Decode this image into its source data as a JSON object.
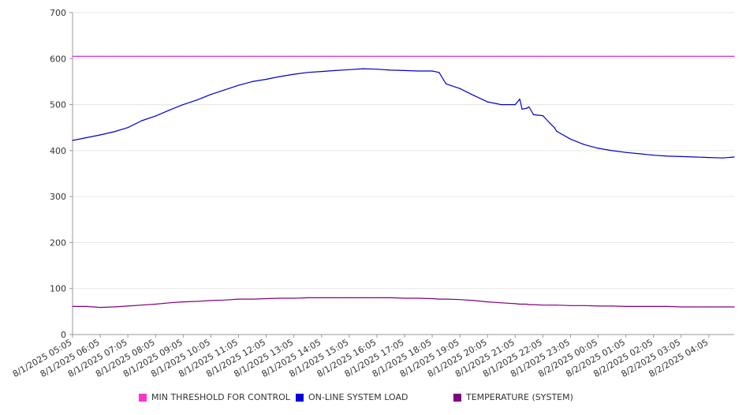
{
  "chart_data": {
    "type": "line",
    "title": "",
    "xlabel": "",
    "ylabel": "",
    "ylim": [
      0,
      700
    ],
    "yticks": [
      0,
      100,
      200,
      300,
      400,
      500,
      600,
      700
    ],
    "grid": true,
    "legend_position": "bottom",
    "x_tick_labels": [
      "8/1/2025 05:05",
      "8/1/2025 06:05",
      "8/1/2025 07:05",
      "8/1/2025 08:05",
      "8/1/2025 09:05",
      "8/1/2025 10:05",
      "8/1/2025 11:05",
      "8/1/2025 12:05",
      "8/1/2025 13:05",
      "8/1/2025 14:05",
      "8/1/2025 15:05",
      "8/1/2025 16:05",
      "8/1/2025 17:05",
      "8/1/2025 18:05",
      "8/1/2025 19:05",
      "8/1/2025 20:05",
      "8/1/2025 21:05",
      "8/1/2025 22:05",
      "8/1/2025 23:05",
      "8/2/2025 00:05",
      "8/2/2025 01:05",
      "8/2/2025 02:05",
      "8/2/2025 03:05",
      "8/2/2025 04:05"
    ],
    "x": [
      "8/1/2025 05:05",
      "8/1/2025 05:35",
      "8/1/2025 06:05",
      "8/1/2025 06:35",
      "8/1/2025 07:05",
      "8/1/2025 07:35",
      "8/1/2025 08:05",
      "8/1/2025 08:35",
      "8/1/2025 09:05",
      "8/1/2025 09:35",
      "8/1/2025 10:05",
      "8/1/2025 10:35",
      "8/1/2025 11:05",
      "8/1/2025 11:35",
      "8/1/2025 12:05",
      "8/1/2025 12:35",
      "8/1/2025 13:05",
      "8/1/2025 13:35",
      "8/1/2025 14:05",
      "8/1/2025 14:35",
      "8/1/2025 15:05",
      "8/1/2025 15:35",
      "8/1/2025 16:05",
      "8/1/2025 16:35",
      "8/1/2025 17:05",
      "8/1/2025 17:35",
      "8/1/2025 18:05",
      "8/1/2025 18:20",
      "8/1/2025 18:35",
      "8/1/2025 19:05",
      "8/1/2025 19:35",
      "8/1/2025 20:05",
      "8/1/2025 20:35",
      "8/1/2025 21:05",
      "8/1/2025 21:15",
      "8/1/2025 21:20",
      "8/1/2025 21:30",
      "8/1/2025 21:35",
      "8/1/2025 21:45",
      "8/1/2025 22:05",
      "8/1/2025 22:20",
      "8/1/2025 22:30",
      "8/1/2025 22:35",
      "8/1/2025 23:05",
      "8/1/2025 23:35",
      "8/2/2025 00:05",
      "8/2/2025 00:35",
      "8/2/2025 01:05",
      "8/2/2025 01:35",
      "8/2/2025 02:05",
      "8/2/2025 02:35",
      "8/2/2025 03:05",
      "8/2/2025 03:35",
      "8/2/2025 04:05",
      "8/2/2025 04:35",
      "8/2/2025 05:00"
    ],
    "series": [
      {
        "name": "MIN THRESHOLD FOR CONTROL",
        "color": "#cc33cc",
        "values": [
          605,
          605,
          605,
          605,
          605,
          605,
          605,
          605,
          605,
          605,
          605,
          605,
          605,
          605,
          605,
          605,
          605,
          605,
          605,
          605,
          605,
          605,
          605,
          605,
          605,
          605,
          605,
          605,
          605,
          605,
          605,
          605,
          605,
          605,
          605,
          605,
          605,
          605,
          605,
          605,
          605,
          605,
          605,
          605,
          605,
          605,
          605,
          605,
          605,
          605,
          605,
          605,
          605,
          605,
          605,
          605
        ]
      },
      {
        "name": "ON-LINE SYSTEM LOAD",
        "color": "#0000cc",
        "values": [
          422,
          428,
          434,
          441,
          450,
          465,
          475,
          488,
          500,
          510,
          522,
          532,
          542,
          550,
          555,
          561,
          566,
          570,
          572,
          574,
          576,
          578,
          577,
          575,
          574,
          573,
          573,
          570,
          545,
          535,
          520,
          506,
          500,
          500,
          512,
          490,
          492,
          495,
          478,
          476,
          460,
          450,
          442,
          425,
          413,
          405,
          400,
          396,
          393,
          390,
          388,
          387,
          386,
          385,
          384,
          386
        ]
      },
      {
        "name": "TEMPERATURE (SYSTEM)",
        "color": "#800080",
        "values": [
          61,
          61,
          59,
          60,
          62,
          64,
          66,
          69,
          71,
          72,
          74,
          75,
          77,
          77,
          78,
          79,
          79,
          80,
          80,
          80,
          80,
          80,
          80,
          80,
          79,
          79,
          78,
          77,
          77,
          76,
          74,
          71,
          69,
          67,
          66,
          66,
          66,
          65,
          65,
          64,
          64,
          64,
          64,
          63,
          63,
          62,
          62,
          61,
          61,
          61,
          61,
          60,
          60,
          60,
          60,
          60
        ]
      }
    ],
    "legend": [
      {
        "label": "MIN THRESHOLD FOR CONTROL",
        "color": "#ff33cc"
      },
      {
        "label": "ON-LINE SYSTEM LOAD",
        "color": "#0000dd"
      },
      {
        "label": "TEMPERATURE (SYSTEM)",
        "color": "#800080"
      }
    ]
  }
}
